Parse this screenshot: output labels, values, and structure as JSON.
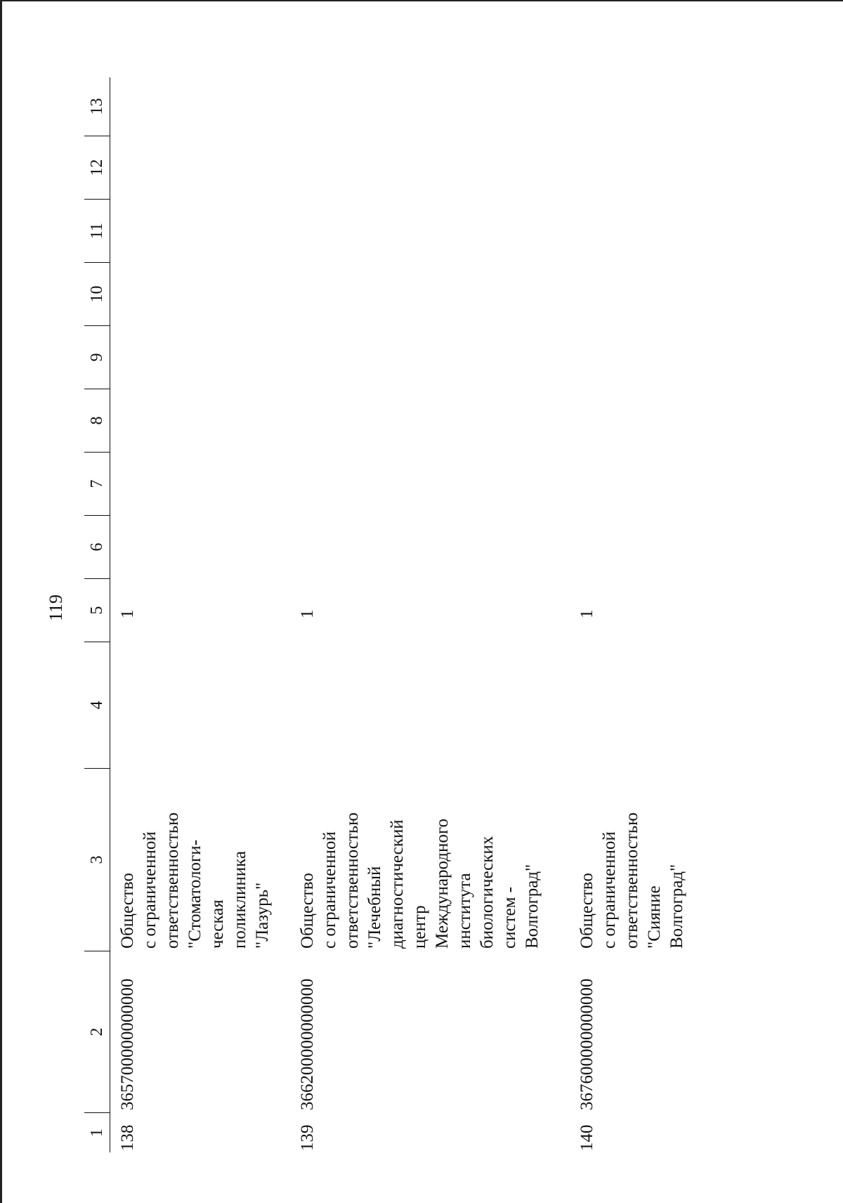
{
  "page": {
    "number": "119"
  },
  "table": {
    "columns": [
      "1",
      "2",
      "3",
      "4",
      "5",
      "6",
      "7",
      "8",
      "9",
      "10",
      "11",
      "12",
      "13"
    ],
    "rows": [
      {
        "num": "138",
        "code": "365700000000000",
        "name": "Общество\nс ограниченной\nответственностью\n\"Стоматологи-\nческая\nполиклиника\n\"Лазурь\"",
        "col5": "1"
      },
      {
        "num": "139",
        "code": "366200000000000",
        "name": "Общество\nс ограниченной\nответственностью\n\"Лечебный\nдиагностический\nцентр\nМеждународного\nинститута\nбиологических\nсистем -\nВолгоград\"",
        "col5": "1"
      },
      {
        "num": "140",
        "code": "367600000000000",
        "name": "Общество\nс ограниченной\nответственностью\n\"Сияние\nВолгоград\"",
        "col5": "1"
      }
    ]
  }
}
